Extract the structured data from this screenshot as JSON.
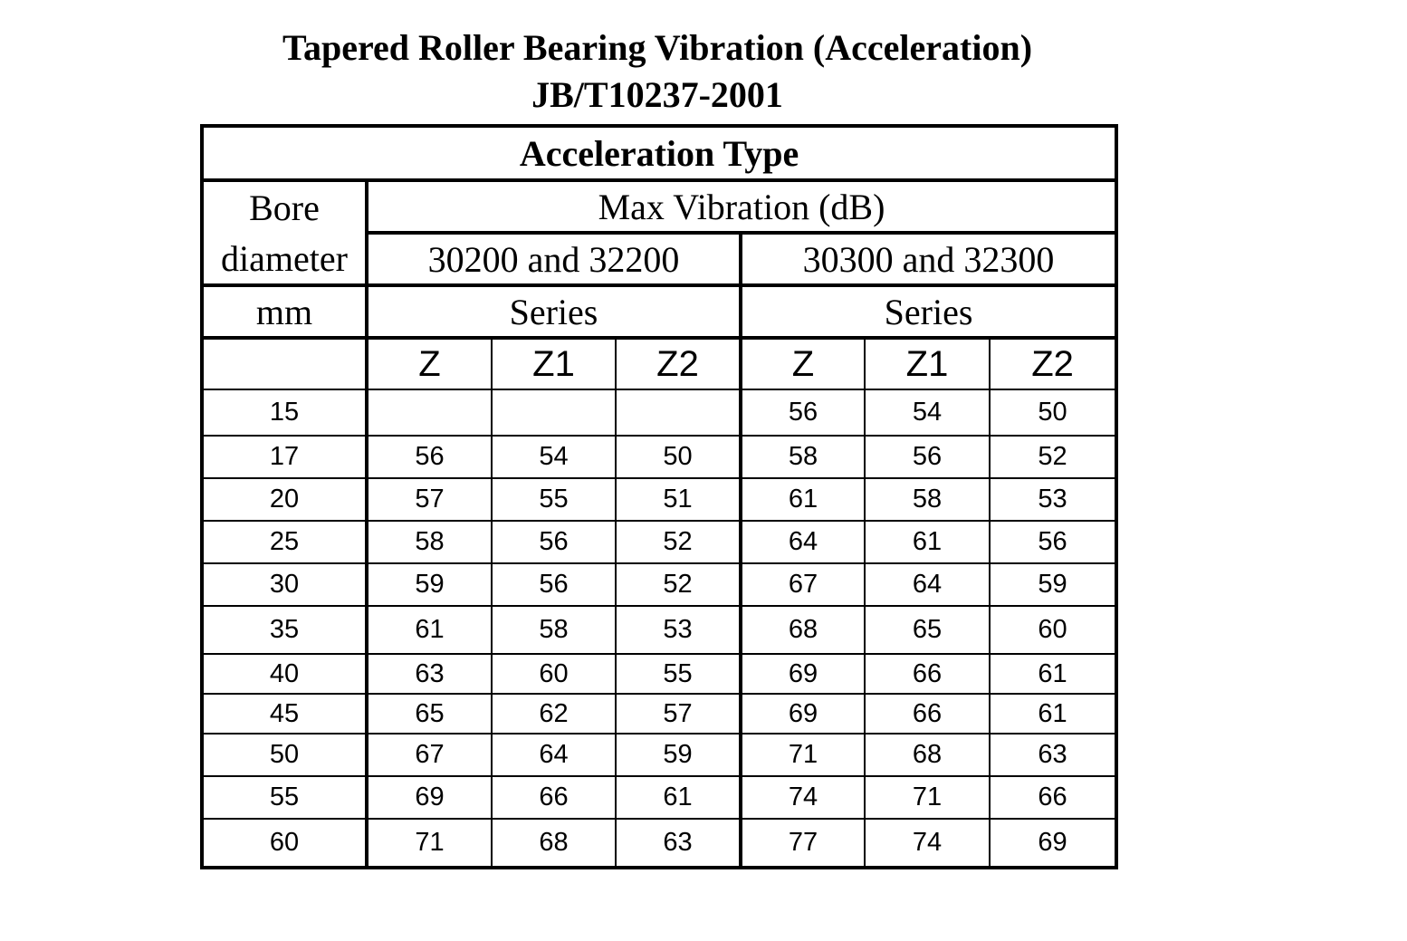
{
  "title": {
    "line1": "Tapered Roller Bearing Vibration (Acceleration)",
    "line2": "JB/T10237-2001"
  },
  "table": {
    "type_header": "Acceleration  Type",
    "bore_header": {
      "line1": "Bore",
      "line2": "diameter",
      "line3": "mm"
    },
    "max_vibration_header": "Max Vibration (dB)",
    "series_groups": [
      {
        "name": "30200 and 32200",
        "label": "Series"
      },
      {
        "name": "30300  and  32300",
        "label": "Series"
      }
    ],
    "grades": [
      "Z",
      "Z1",
      "Z2",
      "Z",
      "Z1",
      "Z2"
    ],
    "rows": [
      {
        "bore": "15",
        "values": [
          "",
          "",
          "",
          "56",
          "54",
          "50"
        ]
      },
      {
        "bore": "17",
        "values": [
          "56",
          "54",
          "50",
          "58",
          "56",
          "52"
        ]
      },
      {
        "bore": "20",
        "values": [
          "57",
          "55",
          "51",
          "61",
          "58",
          "53"
        ]
      },
      {
        "bore": "25",
        "values": [
          "58",
          "56",
          "52",
          "64",
          "61",
          "56"
        ]
      },
      {
        "bore": "30",
        "values": [
          "59",
          "56",
          "52",
          "67",
          "64",
          "59"
        ]
      },
      {
        "bore": "35",
        "values": [
          "61",
          "58",
          "53",
          "68",
          "65",
          "60"
        ]
      },
      {
        "bore": "40",
        "values": [
          "63",
          "60",
          "55",
          "69",
          "66",
          "61"
        ]
      },
      {
        "bore": "45",
        "values": [
          "65",
          "62",
          "57",
          "69",
          "66",
          "61"
        ]
      },
      {
        "bore": "50",
        "values": [
          "67",
          "64",
          "59",
          "71",
          "68",
          "63"
        ]
      },
      {
        "bore": "55",
        "values": [
          "69",
          "66",
          "61",
          "74",
          "71",
          "66"
        ]
      },
      {
        "bore": "60",
        "values": [
          "71",
          "68",
          "63",
          "77",
          "74",
          "69"
        ]
      }
    ]
  }
}
